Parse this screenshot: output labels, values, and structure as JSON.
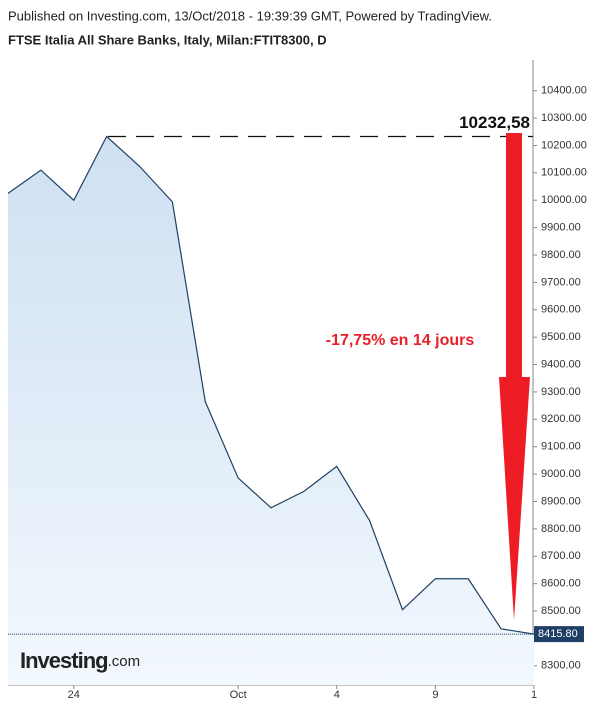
{
  "header": {
    "published": "Published on Investing.com, 13/Oct/2018 - 19:39:39 GMT, Powered by TradingView."
  },
  "chart_data": {
    "type": "area",
    "title": "FTSE Italia All Share Banks, Italy, Milan:FTIT8300, D",
    "categories": [
      null,
      null,
      "24",
      null,
      null,
      null,
      null,
      "Oct",
      null,
      null,
      "4",
      null,
      null,
      "9",
      null,
      null,
      "1"
    ],
    "values": [
      10025,
      10110,
      10000,
      10232.58,
      10124,
      9994,
      9265,
      8986,
      8877,
      8937,
      9028,
      8830,
      8505,
      8618,
      8618,
      8435,
      8415.8
    ],
    "color": "#1f3f66",
    "ylim": [
      8230,
      10512
    ],
    "yticks": [
      {
        "value": 8300,
        "label": "8300.00"
      },
      {
        "value": 8400,
        "label": "8400.00"
      },
      {
        "value": 8500,
        "label": "8500.00"
      },
      {
        "value": 8600,
        "label": "8600.00"
      },
      {
        "value": 8700,
        "label": "8700.00"
      },
      {
        "value": 8800,
        "label": "8800.00"
      },
      {
        "value": 8900,
        "label": "8900.00"
      },
      {
        "value": 9000,
        "label": "9000.00"
      },
      {
        "value": 9100,
        "label": "9100.00"
      },
      {
        "value": 9200,
        "label": "9200.00"
      },
      {
        "value": 9300,
        "label": "9300.00"
      },
      {
        "value": 9400,
        "label": "9400.00"
      },
      {
        "value": 9500,
        "label": "9500.00"
      },
      {
        "value": 9600,
        "label": "9600.00"
      },
      {
        "value": 9700,
        "label": "9700.00"
      },
      {
        "value": 9800,
        "label": "9800.00"
      },
      {
        "value": 9900,
        "label": "9900.00"
      },
      {
        "value": 10000,
        "label": "10000.00"
      },
      {
        "value": 10100,
        "label": "10100.00"
      },
      {
        "value": 10200,
        "label": "10200.00"
      },
      {
        "value": 10300,
        "label": "10300.00"
      },
      {
        "value": 10400,
        "label": "10400.00"
      }
    ],
    "max_line": {
      "value": 10232.58,
      "label": "10232,58"
    },
    "last_price": {
      "value": 8415.8,
      "label": "8415.80"
    },
    "annotation": "-17,75% en 14 jours",
    "logo": "Investing",
    "logo_suffix": ".com"
  }
}
